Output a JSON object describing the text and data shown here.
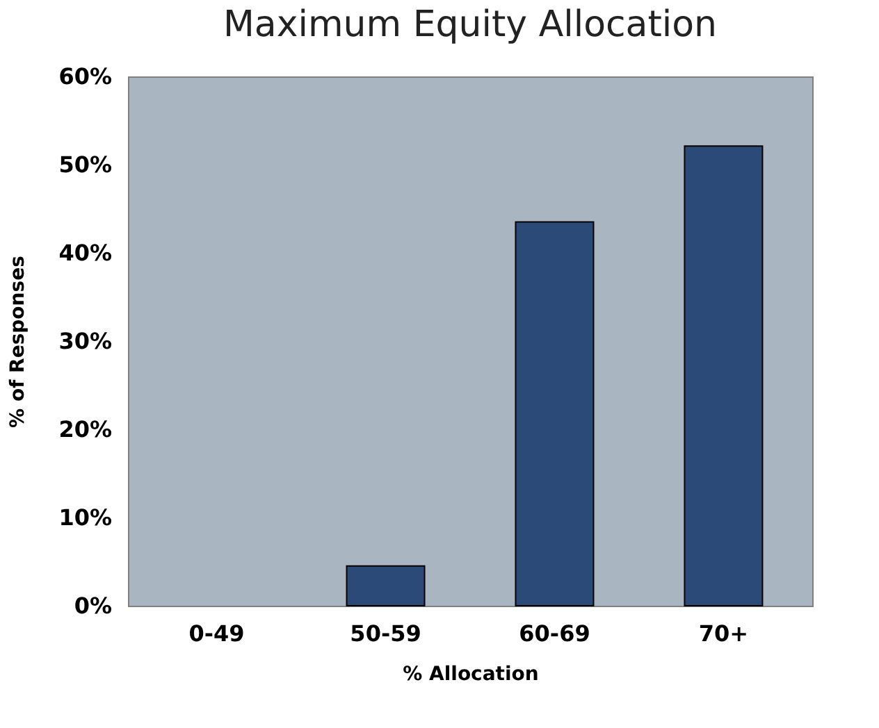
{
  "chart_data": {
    "type": "bar",
    "title": "Maximum Equity Allocation",
    "xlabel": "% Allocation",
    "ylabel": "% of Responses",
    "categories": [
      "0-49",
      "50-59",
      "60-69",
      "70+"
    ],
    "values": [
      0,
      4.5,
      43.5,
      52.1
    ],
    "color": "#2c4a78",
    "ylim": [
      0,
      60
    ],
    "yticks": [
      {
        "value": 0,
        "label": "0%"
      },
      {
        "value": 10,
        "label": "10%"
      },
      {
        "value": 20,
        "label": "20%"
      },
      {
        "value": 30,
        "label": "30%"
      },
      {
        "value": 40,
        "label": "40%"
      },
      {
        "value": 50,
        "label": "50%"
      },
      {
        "value": 60,
        "label": "60%"
      }
    ],
    "grid": false
  }
}
